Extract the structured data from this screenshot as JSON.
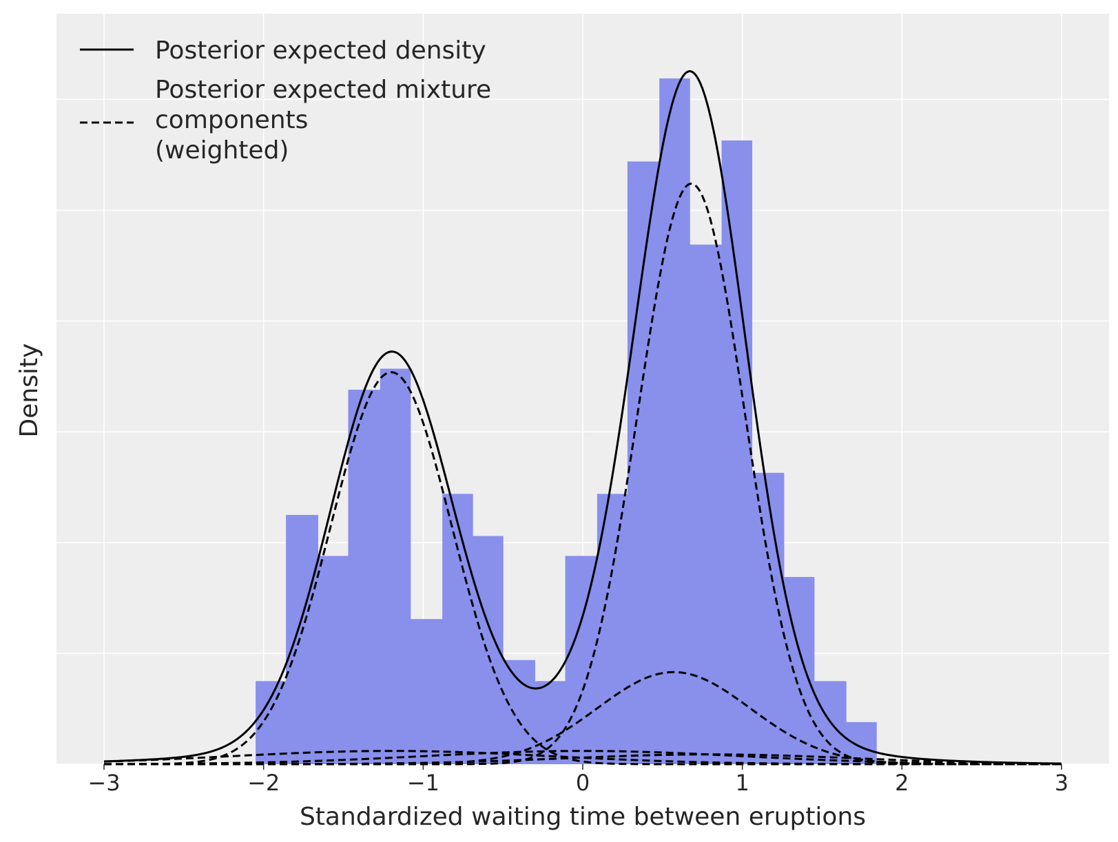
{
  "chart_data": {
    "type": "histogram",
    "xlabel": "Standardized waiting time between eruptions",
    "ylabel": "Density",
    "xlim": [
      -3.3,
      3.3
    ],
    "ylim": [
      0,
      0.63
    ],
    "xticks": [
      -3,
      -2,
      -1,
      0,
      1,
      2,
      3
    ],
    "xtick_labels": [
      "−3",
      "−2",
      "−1",
      "0",
      "1",
      "2",
      "3"
    ],
    "y_tick_labels_shown": false,
    "grid": true,
    "histogram": {
      "color": "#8890ec",
      "bins": [
        {
          "x0": -2.05,
          "x1": -1.86,
          "value": 0.075
        },
        {
          "x0": -1.86,
          "x1": -1.66,
          "value": 0.225
        },
        {
          "x0": -1.66,
          "x1": -1.47,
          "value": 0.188
        },
        {
          "x0": -1.47,
          "x1": -1.27,
          "value": 0.338
        },
        {
          "x0": -1.27,
          "x1": -1.08,
          "value": 0.357
        },
        {
          "x0": -1.08,
          "x1": -0.88,
          "value": 0.131
        },
        {
          "x0": -0.88,
          "x1": -0.69,
          "value": 0.244
        },
        {
          "x0": -0.69,
          "x1": -0.5,
          "value": 0.206
        },
        {
          "x0": -0.5,
          "x1": -0.3,
          "value": 0.094
        },
        {
          "x0": -0.3,
          "x1": -0.11,
          "value": 0.075
        },
        {
          "x0": -0.11,
          "x1": 0.09,
          "value": 0.188
        },
        {
          "x0": 0.09,
          "x1": 0.28,
          "value": 0.244
        },
        {
          "x0": 0.28,
          "x1": 0.48,
          "value": 0.544
        },
        {
          "x0": 0.48,
          "x1": 0.67,
          "value": 0.619
        },
        {
          "x0": 0.67,
          "x1": 0.87,
          "value": 0.469
        },
        {
          "x0": 0.87,
          "x1": 1.06,
          "value": 0.563
        },
        {
          "x0": 1.06,
          "x1": 1.26,
          "value": 0.263
        },
        {
          "x0": 1.26,
          "x1": 1.45,
          "value": 0.169
        },
        {
          "x0": 1.45,
          "x1": 1.65,
          "value": 0.075
        },
        {
          "x0": 1.65,
          "x1": 1.84,
          "value": 0.038
        }
      ]
    },
    "components": [
      {
        "weight": 0.337,
        "mu": -1.2,
        "sigma": 0.38
      },
      {
        "weight": 0.44,
        "mu": 0.68,
        "sigma": 0.335
      },
      {
        "weight": 0.1,
        "mu": 0.57,
        "sigma": 0.48
      },
      {
        "weight": 0.03,
        "mu": -1.2,
        "sigma": 1.0
      },
      {
        "weight": 0.03,
        "mu": 0.0,
        "sigma": 1.0
      },
      {
        "weight": 0.02,
        "mu": 0.8,
        "sigma": 0.9
      }
    ],
    "series": [
      {
        "name": "Posterior expected density",
        "style": "solid",
        "color": "#000000"
      },
      {
        "name": "Posterior expected mixture components (weighted)",
        "style": "dashed",
        "color": "#000000"
      }
    ],
    "legend": {
      "placement": "top-left",
      "entries": [
        {
          "lines": [
            "Posterior expected density"
          ],
          "style": "solid"
        },
        {
          "lines": [
            "Posterior expected mixture",
            "components",
            "(weighted)"
          ],
          "style": "dashed"
        }
      ]
    }
  }
}
